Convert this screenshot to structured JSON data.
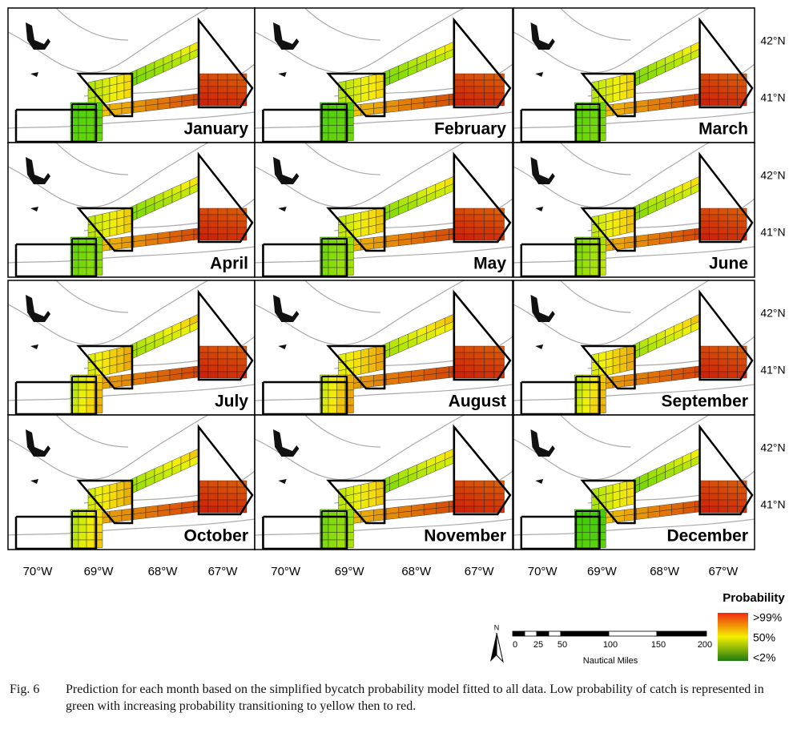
{
  "panels": [
    {
      "month": "January"
    },
    {
      "month": "February"
    },
    {
      "month": "March"
    },
    {
      "month": "April"
    },
    {
      "month": "May"
    },
    {
      "month": "June"
    },
    {
      "month": "July"
    },
    {
      "month": "August"
    },
    {
      "month": "September"
    },
    {
      "month": "October"
    },
    {
      "month": "November"
    },
    {
      "month": "December"
    }
  ],
  "lat_labels": [
    "42°N",
    "41°N"
  ],
  "lon_labels": [
    "70°W",
    "69°W",
    "68°W",
    "67°W"
  ],
  "legend": {
    "title": "Probability",
    "labels": [
      ">99%",
      "50%",
      "<2%"
    ]
  },
  "scale_bar": {
    "north": "N",
    "ticks": [
      "0",
      "25",
      "50",
      "100",
      "150",
      "200"
    ],
    "unit": "Nautical Miles"
  },
  "caption": {
    "label": "Fig. 6",
    "text": "Prediction for each month based on the simplified bycatch probability model fitted to all data. Low probability of catch is represented in green with increasing probability transitioning to yellow then to red."
  }
}
